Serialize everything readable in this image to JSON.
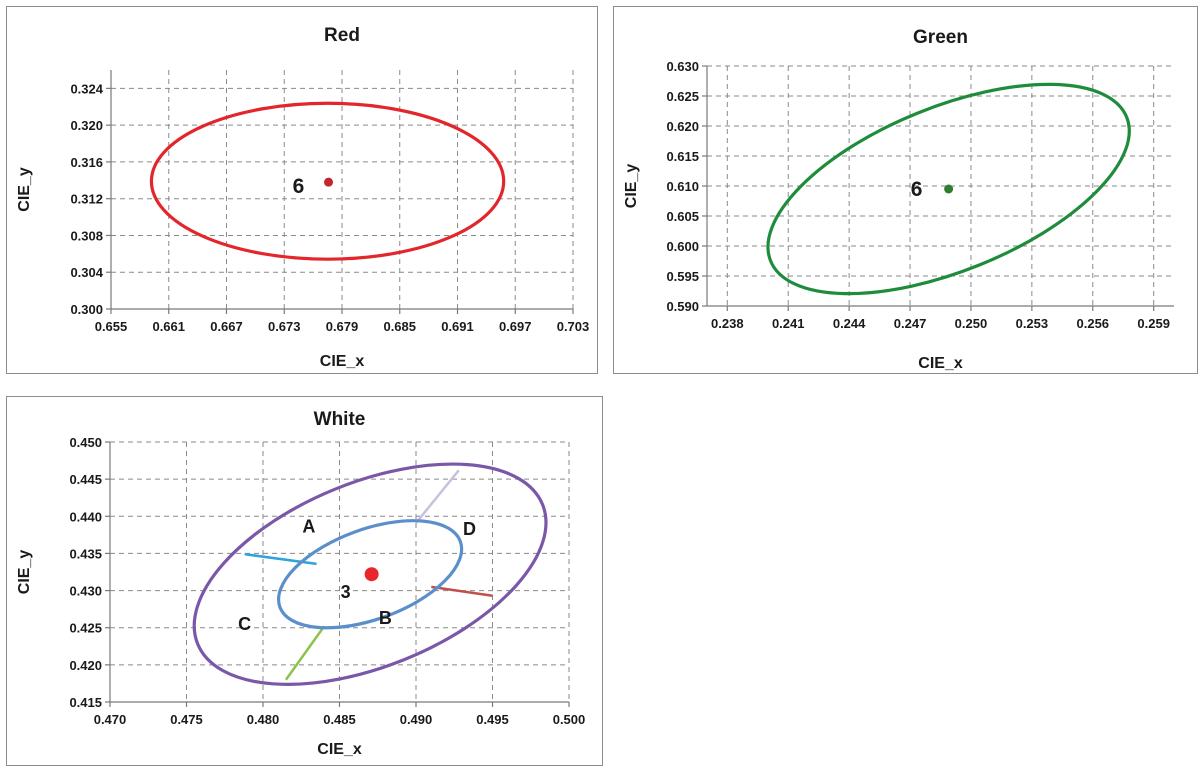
{
  "chart_data": [
    {
      "id": "red",
      "type": "scatter",
      "title": "Red",
      "xlabel": "CIE_x",
      "ylabel": "CIE_y",
      "xlim": [
        0.655,
        0.703
      ],
      "ylim": [
        0.3,
        0.326
      ],
      "xticks": [
        "0.655",
        "0.661",
        "0.667",
        "0.673",
        "0.679",
        "0.685",
        "0.691",
        "0.697",
        "0.703"
      ],
      "yticks": [
        "0.300",
        "0.304",
        "0.308",
        "0.312",
        "0.316",
        "0.320",
        "0.324"
      ],
      "grid": true,
      "points": [
        {
          "x": 0.6776,
          "y": 0.3138,
          "label": "6",
          "color": "#c0282d"
        }
      ],
      "ellipses": [
        {
          "cx": 0.6775,
          "cy": 0.3139,
          "rx": 0.0183,
          "ry": 0.00848,
          "angle": 0,
          "color": "#e3262b"
        }
      ],
      "lines": [],
      "region_labels": []
    },
    {
      "id": "green",
      "type": "scatter",
      "title": "Green",
      "xlabel": "CIE_x",
      "ylabel": "CIE_y",
      "xlim": [
        0.237,
        0.26
      ],
      "ylim": [
        0.59,
        0.63
      ],
      "xticks": [
        "0.238",
        "0.241",
        "0.244",
        "0.247",
        "0.250",
        "0.253",
        "0.256",
        "0.259"
      ],
      "yticks": [
        "0.590",
        "0.595",
        "0.600",
        "0.605",
        "0.610",
        "0.615",
        "0.620",
        "0.625",
        "0.630"
      ],
      "grid": true,
      "points": [
        {
          "x": 0.2489,
          "y": 0.6095,
          "label": "6",
          "color": "#2e7d32"
        }
      ],
      "ellipses": [
        {
          "cx": 0.2489,
          "cy": 0.6095,
          "rx": 192,
          "ry": 82,
          "angle": -22,
          "pixel": true,
          "color": "#1e8c3a"
        }
      ],
      "lines": [],
      "region_labels": []
    },
    {
      "id": "white",
      "type": "scatter",
      "title": "White",
      "xlabel": "CIE_x",
      "ylabel": "CIE_y",
      "xlim": [
        0.47,
        0.5
      ],
      "ylim": [
        0.415,
        0.45
      ],
      "xticks": [
        "0.470",
        "0.475",
        "0.480",
        "0.485",
        "0.490",
        "0.495",
        "0.500"
      ],
      "yticks": [
        "0.415",
        "0.420",
        "0.425",
        "0.430",
        "0.435",
        "0.440",
        "0.445",
        "0.450"
      ],
      "grid": true,
      "points": [
        {
          "x": 0.4871,
          "y": 0.4322,
          "label": "3",
          "color": "#e8262b"
        }
      ],
      "ellipses": [
        {
          "cx": 0.487,
          "cy": 0.4322,
          "rx": 96,
          "ry": 45,
          "angle": -20,
          "pixel": true,
          "color": "#5b8fcb"
        },
        {
          "cx": 0.487,
          "cy": 0.4322,
          "rx": 186,
          "ry": 92,
          "angle": -22,
          "pixel": true,
          "color": "#7b57a8"
        }
      ],
      "lines": [
        {
          "x1": 0.4835,
          "y1": 0.4336,
          "x2": 0.4788,
          "y2": 0.4349,
          "color": "#2fa3dc"
        },
        {
          "x1": 0.49,
          "y1": 0.4391,
          "x2": 0.4928,
          "y2": 0.4462,
          "color": "#c9bfe0"
        },
        {
          "x1": 0.491,
          "y1": 0.4305,
          "x2": 0.495,
          "y2": 0.4293,
          "color": "#c0504d"
        },
        {
          "x1": 0.484,
          "y1": 0.4252,
          "x2": 0.4815,
          "y2": 0.418,
          "color": "#8bc34a"
        }
      ],
      "region_labels": [
        {
          "text": "A",
          "x": 0.483,
          "y": 0.4378
        },
        {
          "text": "B",
          "x": 0.488,
          "y": 0.4255
        },
        {
          "text": "C",
          "x": 0.4788,
          "y": 0.4247
        },
        {
          "text": "D",
          "x": 0.4935,
          "y": 0.4375
        }
      ]
    }
  ]
}
